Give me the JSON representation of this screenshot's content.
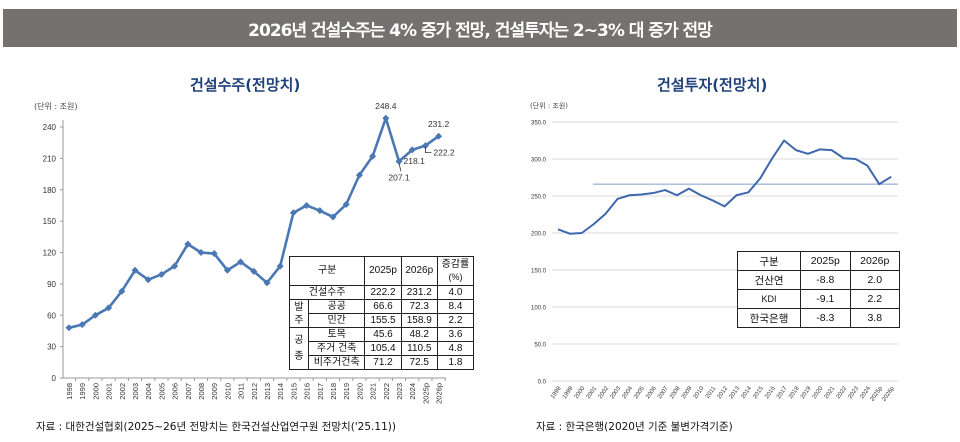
{
  "banner": {
    "text": "2026년 건설수주는 4% 증가 전망, 건설투자는 2~3%  대 증가 전망"
  },
  "colors": {
    "banner_bg": "#757170",
    "title": "#1f3f7a",
    "line_left": "#4a78b4",
    "line_right": "#3e67ad",
    "ref_line": "#7f9cc8"
  },
  "left": {
    "source": "자료 : 대한건설협회(2025~26년 전망치는 한국건설산업연구원 전망치('25.11))",
    "table": {
      "headers": [
        "구분",
        "2025p",
        "2026p",
        "증감률\n(%)"
      ],
      "header_rate_line1": "증감률",
      "header_rate_line2": "(%)",
      "total": {
        "label": "건설수주",
        "v2025": "222.2",
        "v2026": "231.2",
        "rate": "4.0"
      },
      "group1": {
        "label_line1": "발",
        "label_line2": "주",
        "rows": [
          {
            "label": "공공",
            "v2025": "66.6",
            "v2026": "72.3",
            "rate": "8.4"
          },
          {
            "label": "민간",
            "v2025": "155.5",
            "v2026": "158.9",
            "rate": "2.2"
          }
        ]
      },
      "group2": {
        "label_line1": "공",
        "label_line2": "종",
        "rows": [
          {
            "label": "토목",
            "v2025": "45.6",
            "v2026": "48.2",
            "rate": "3.6"
          },
          {
            "label": "주거 건축",
            "v2025": "105.4",
            "v2026": "110.5",
            "rate": "4.8"
          },
          {
            "label": "비주거건축",
            "v2025": "71.2",
            "v2026": "72.5",
            "rate": "1.8"
          }
        ]
      }
    }
  },
  "right": {
    "source": "자료 : 한국은행(2020년 기준 불변가격기준)",
    "table": {
      "headers": [
        "구분",
        "2025p",
        "2026p"
      ],
      "rows": [
        {
          "label": "건산연",
          "v2025": "-8.8",
          "v2026": "2.0"
        },
        {
          "label": "KDI",
          "v2025": "-9.1",
          "v2026": "2.2"
        },
        {
          "label": "한국은행",
          "v2025": "-8.3",
          "v2026": "3.8"
        }
      ]
    }
  },
  "chart_data": [
    {
      "type": "line",
      "title": "건설수주(전망치)",
      "unit_label": "(단위 : 조원)",
      "xlabel": "",
      "ylabel": "",
      "ylim": [
        0,
        240
      ],
      "yticks": [
        "0",
        "30",
        "60",
        "90",
        "120",
        "150",
        "180",
        "210",
        "240"
      ],
      "grid": false,
      "categories": [
        "1998",
        "1999",
        "2000",
        "2001",
        "2002",
        "2003",
        "2004",
        "2005",
        "2006",
        "2007",
        "2008",
        "2009",
        "2010",
        "2011",
        "2012",
        "2013",
        "2014",
        "2015",
        "2016",
        "2017",
        "2018",
        "2019",
        "2020",
        "2021",
        "2022",
        "2023",
        "2024",
        "2025p",
        "2026p"
      ],
      "series": [
        {
          "name": "건설수주",
          "values": [
            48,
            51,
            60,
            67,
            83,
            103,
            94,
            99,
            107,
            128,
            120,
            119,
            103,
            111,
            102,
            91,
            107,
            158,
            165,
            160,
            154,
            166,
            194,
            212,
            248.4,
            207.1,
            218.1,
            222.2,
            231.2
          ]
        }
      ],
      "annotations": [
        "248.4",
        "207.1",
        "218.1",
        "222.2",
        "231.2"
      ]
    },
    {
      "type": "line",
      "title": "건설투자(전망치)",
      "unit_label": "(단위 : 조원)",
      "xlabel": "",
      "ylabel": "",
      "ylim": [
        0,
        350
      ],
      "yticks": [
        "0.0",
        "50.0",
        "100.0",
        "150.0",
        "200.0",
        "250.0",
        "300.0",
        "350.0"
      ],
      "grid": true,
      "categories": [
        "1998",
        "1999",
        "2000",
        "2001",
        "2002",
        "2003",
        "2004",
        "2005",
        "2006",
        "2007",
        "2008",
        "2009",
        "2010",
        "2011",
        "2012",
        "2013",
        "2014",
        "2015",
        "2016",
        "2017",
        "2018",
        "2019",
        "2020",
        "2021",
        "2022",
        "2023",
        "2024",
        "2025p",
        "2026p"
      ],
      "series": [
        {
          "name": "건설투자",
          "values": [
            205,
            199,
            200,
            212,
            226,
            246,
            251,
            252,
            254,
            258,
            251,
            260,
            251,
            244,
            236,
            251,
            255,
            274,
            301,
            325,
            312,
            307,
            313,
            312,
            301,
            300,
            291,
            266,
            276
          ]
        }
      ],
      "reference_line": 266
    }
  ]
}
